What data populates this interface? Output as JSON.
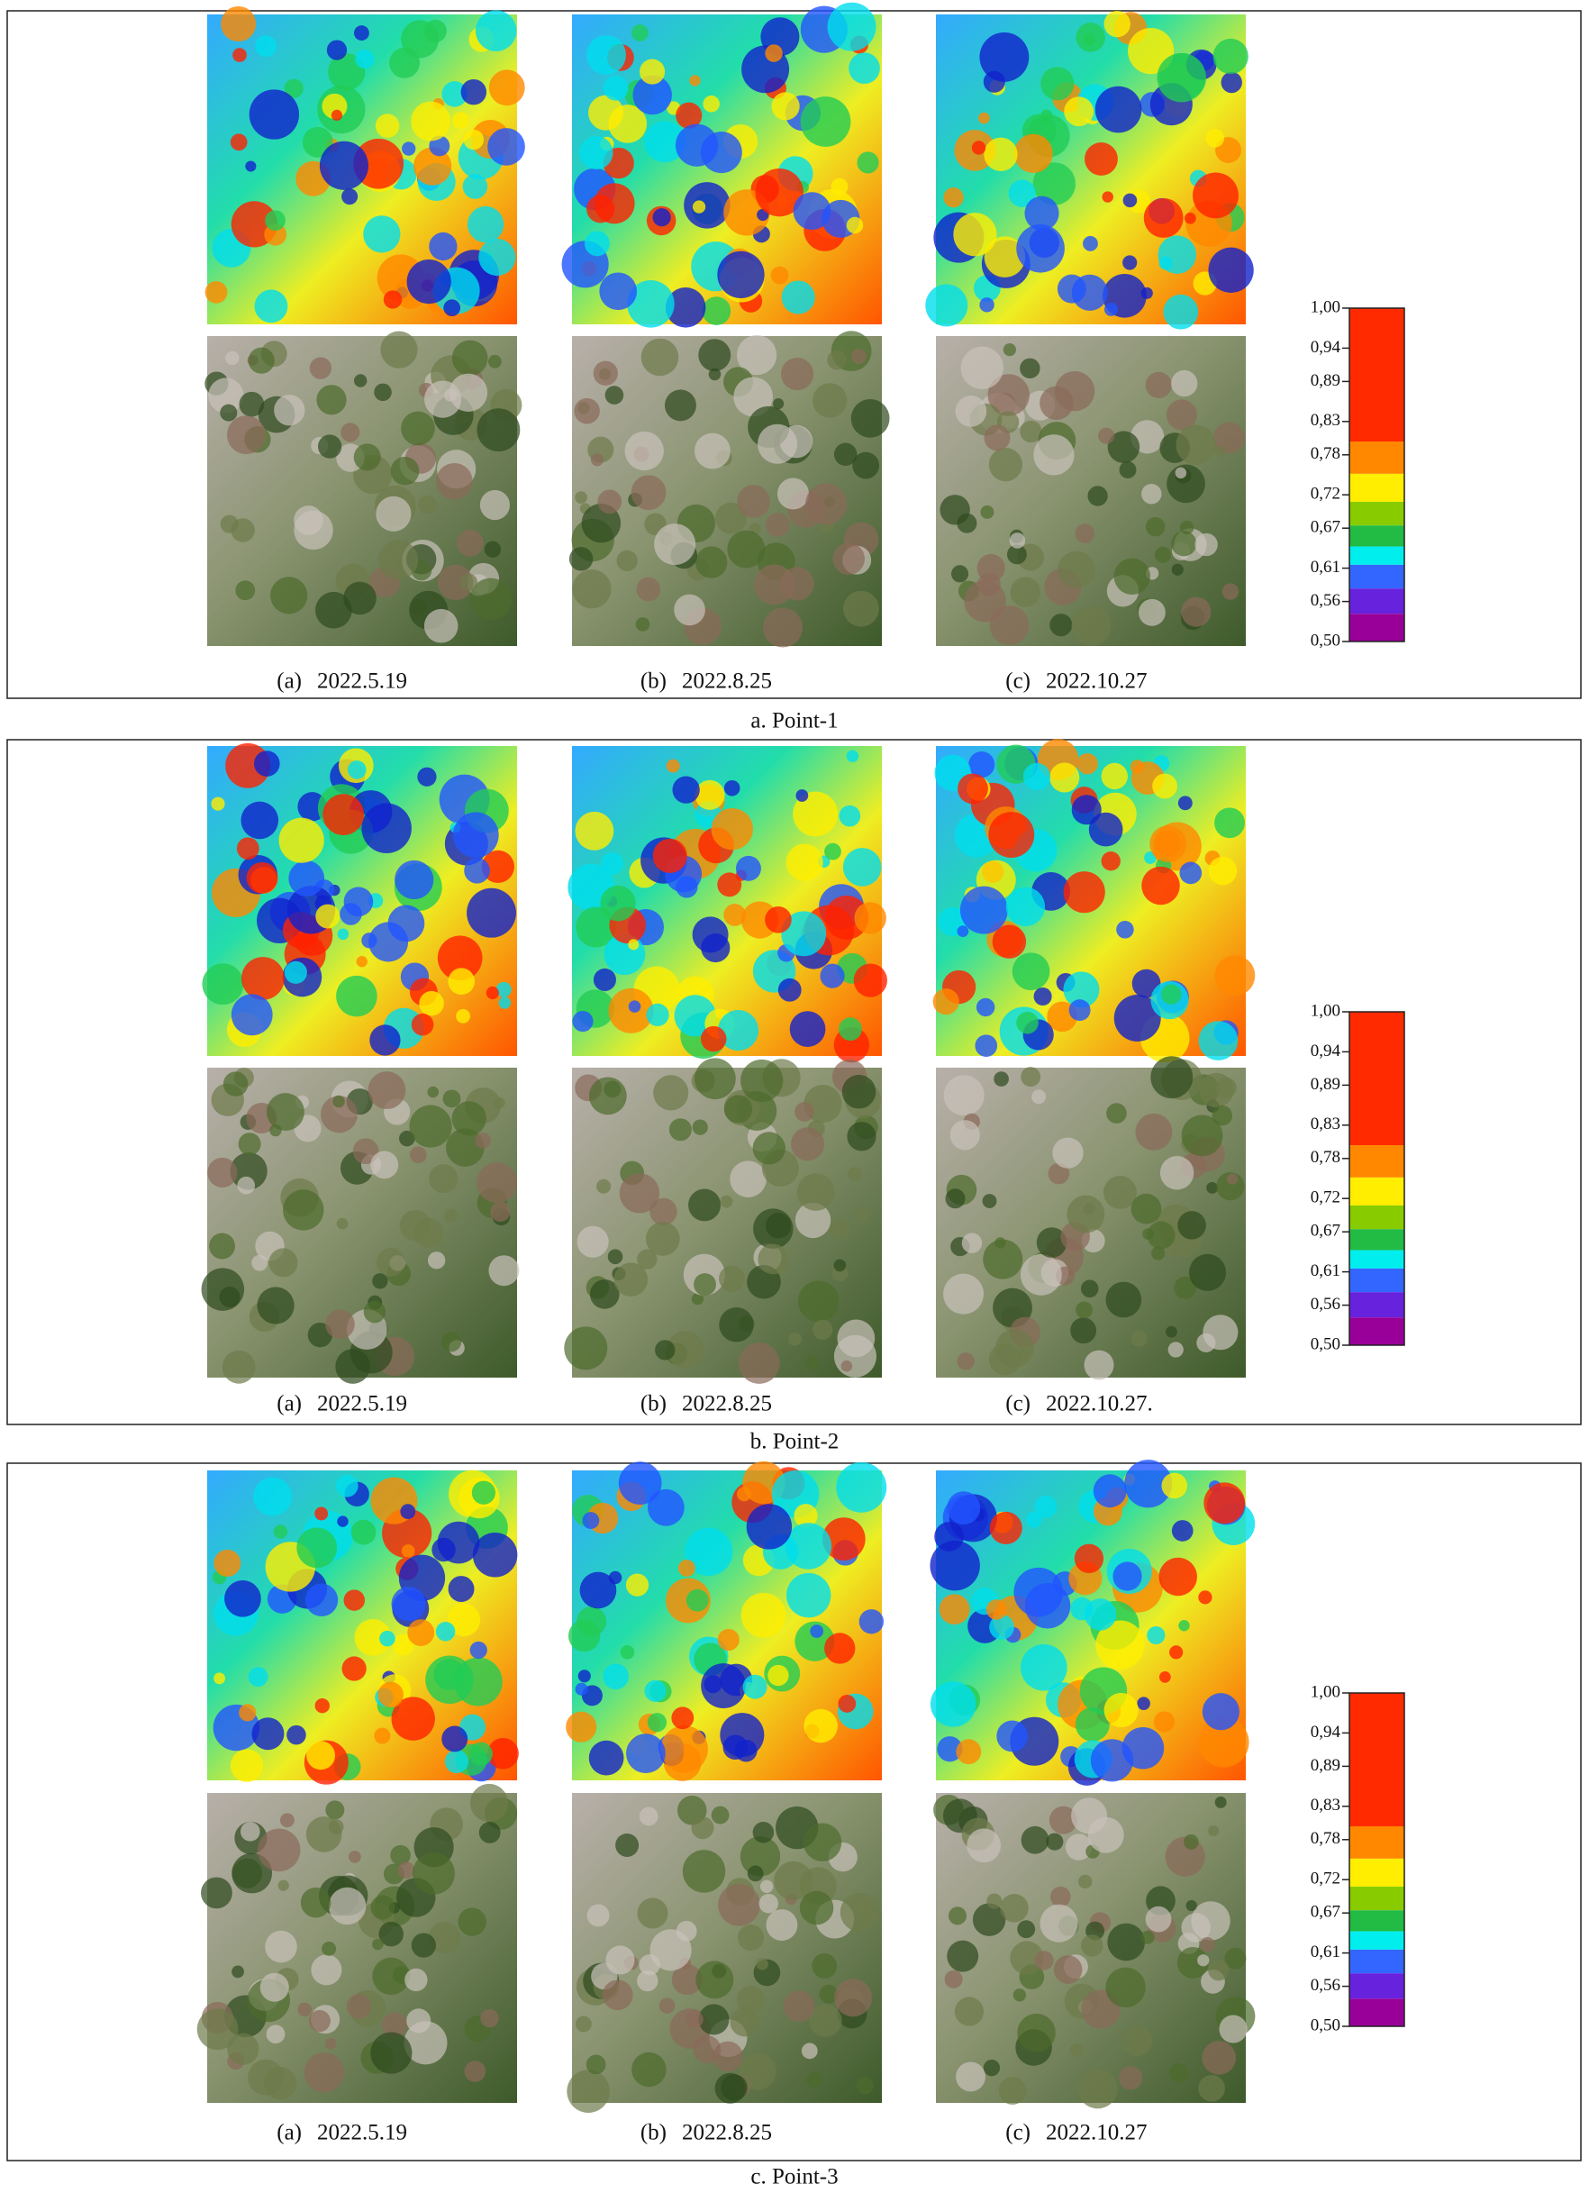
{
  "panels": [
    {
      "caption": "a. Point-1",
      "images": [
        {
          "label": "(a)",
          "date": "2022.5.19"
        },
        {
          "label": "(b)",
          "date": "2022.8.25"
        },
        {
          "label": "(c)",
          "date": "2022.10.27"
        }
      ],
      "legend": {
        "ticks": [
          {
            "value": 1.0,
            "label": "1,00"
          },
          {
            "value": 0.94,
            "label": "0,94"
          },
          {
            "value": 0.89,
            "label": "0,89"
          },
          {
            "value": 0.83,
            "label": "0,83"
          },
          {
            "value": 0.78,
            "label": "0,78"
          },
          {
            "value": 0.72,
            "label": "0,72"
          },
          {
            "value": 0.67,
            "label": "0,67"
          },
          {
            "value": 0.61,
            "label": "0,61"
          },
          {
            "value": 0.56,
            "label": "0,56"
          },
          {
            "value": 0.5,
            "label": "0,50"
          }
        ],
        "colors": [
          "#ff2a00",
          "#ff8800",
          "#ffee00",
          "#88cc00",
          "#22bb44",
          "#00eeee",
          "#3366ff",
          "#6622dd",
          "#990099"
        ]
      }
    },
    {
      "caption": "b. Point-2",
      "images": [
        {
          "label": "(a)",
          "date": "2022.5.19"
        },
        {
          "label": "(b)",
          "date": "2022.8.25"
        },
        {
          "label": "(c)",
          "date": "2022.10.27."
        }
      ],
      "legend": {
        "ticks": [
          {
            "value": 1.0,
            "label": "1,00"
          },
          {
            "value": 0.94,
            "label": "0,94"
          },
          {
            "value": 0.89,
            "label": "0,89"
          },
          {
            "value": 0.83,
            "label": "0,83"
          },
          {
            "value": 0.78,
            "label": "0,78"
          },
          {
            "value": 0.72,
            "label": "0,72"
          },
          {
            "value": 0.67,
            "label": "0,67"
          },
          {
            "value": 0.61,
            "label": "0,61"
          },
          {
            "value": 0.56,
            "label": "0,56"
          },
          {
            "value": 0.5,
            "label": "0,50"
          }
        ],
        "colors": [
          "#ff2a00",
          "#ff8800",
          "#ffee00",
          "#88cc00",
          "#22bb44",
          "#00eeee",
          "#3366ff",
          "#6622dd",
          "#990099"
        ]
      }
    },
    {
      "caption": "c. Point-3",
      "images": [
        {
          "label": "(a)",
          "date": "2022.5.19"
        },
        {
          "label": "(b)",
          "date": "2022.8.25"
        },
        {
          "label": "(c)",
          "date": "2022.10.27"
        }
      ],
      "legend": {
        "ticks": [
          {
            "value": 1.0,
            "label": "1,00"
          },
          {
            "value": 0.94,
            "label": "0,94"
          },
          {
            "value": 0.89,
            "label": "0,89"
          },
          {
            "value": 0.83,
            "label": "0,83"
          },
          {
            "value": 0.78,
            "label": "0,78"
          },
          {
            "value": 0.72,
            "label": "0,72"
          },
          {
            "value": 0.67,
            "label": "0,67"
          },
          {
            "value": 0.61,
            "label": "0,61"
          },
          {
            "value": 0.56,
            "label": "0,56"
          },
          {
            "value": 0.5,
            "label": "0,50"
          }
        ],
        "colors": [
          "#ff2a00",
          "#ff8800",
          "#ffee00",
          "#88cc00",
          "#22bb44",
          "#00eeee",
          "#3366ff",
          "#6622dd",
          "#990099"
        ]
      }
    }
  ]
}
